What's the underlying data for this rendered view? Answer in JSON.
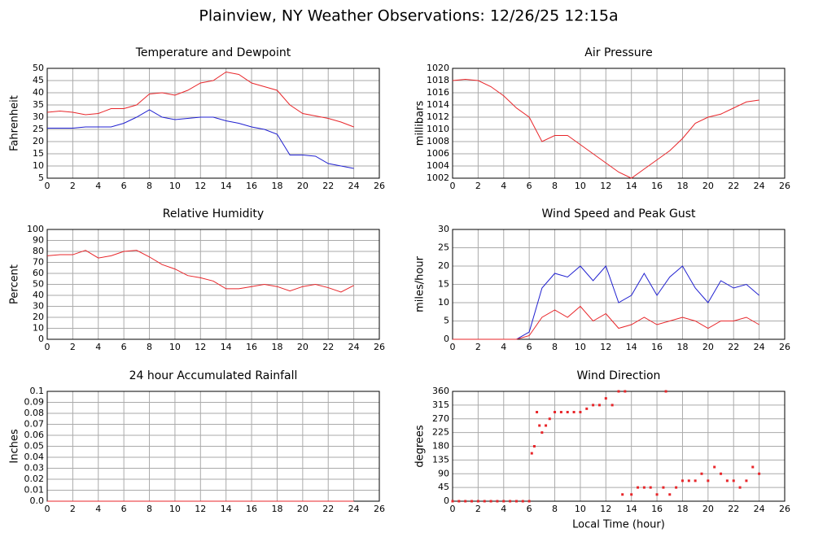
{
  "title": "Plainview, NY Weather Observations: 12/26/25 12:15a",
  "chart_data": [
    {
      "type": "line",
      "title": "Temperature and Dewpoint",
      "ylabel": "Fahrenheit",
      "grid": true,
      "xlim": [
        0,
        26
      ],
      "xticks": [
        0,
        2,
        4,
        6,
        8,
        10,
        12,
        14,
        16,
        18,
        20,
        22,
        24,
        26
      ],
      "ylim": [
        5,
        50
      ],
      "yticks": [
        5,
        10,
        15,
        20,
        25,
        30,
        35,
        40,
        45,
        50
      ],
      "x": [
        0,
        1,
        2,
        3,
        4,
        5,
        6,
        7,
        8,
        9,
        10,
        11,
        12,
        13,
        14,
        15,
        16,
        17,
        18,
        19,
        20,
        21,
        22,
        23,
        24
      ],
      "series": [
        {
          "color": "#e8262a",
          "values": [
            32,
            32.5,
            32,
            31,
            31.5,
            33.5,
            33.5,
            35,
            39.5,
            40,
            39,
            41,
            44,
            45,
            48.5,
            47.5,
            44,
            42.5,
            41,
            35,
            31.5,
            30.5,
            29.5,
            28,
            26
          ]
        },
        {
          "color": "#2020d0",
          "values": [
            25.5,
            25.5,
            25.5,
            26,
            26,
            26,
            27.5,
            30,
            33,
            30,
            29,
            29.5,
            30,
            30,
            28.5,
            27.5,
            26,
            25,
            23,
            14.5,
            14.5,
            14,
            11,
            10,
            9
          ]
        }
      ]
    },
    {
      "type": "line",
      "title": "Air Pressure",
      "ylabel": "millibars",
      "grid": true,
      "xlim": [
        0,
        26
      ],
      "xticks": [
        0,
        2,
        4,
        6,
        8,
        10,
        12,
        14,
        16,
        18,
        20,
        22,
        24,
        26
      ],
      "ylim": [
        1002,
        1020
      ],
      "yticks": [
        1002,
        1004,
        1006,
        1008,
        1010,
        1012,
        1014,
        1016,
        1018,
        1020
      ],
      "x": [
        0,
        1,
        2,
        3,
        4,
        5,
        6,
        7,
        8,
        9,
        10,
        11,
        12,
        13,
        14,
        15,
        16,
        17,
        18,
        19,
        20,
        21,
        22,
        23,
        24
      ],
      "series": [
        {
          "color": "#e8262a",
          "values": [
            1018,
            1018.2,
            1018,
            1017,
            1015.5,
            1013.5,
            1012,
            1008,
            1009,
            1009,
            1007.5,
            1006,
            1004.5,
            1003,
            1002,
            1003.5,
            1005,
            1006.5,
            1008.5,
            1011,
            1012,
            1012.5,
            1013.5,
            1014.5,
            1014.8
          ]
        }
      ]
    },
    {
      "type": "line",
      "title": "Relative Humidity",
      "ylabel": "Percent",
      "grid": true,
      "xlim": [
        0,
        26
      ],
      "xticks": [
        0,
        2,
        4,
        6,
        8,
        10,
        12,
        14,
        16,
        18,
        20,
        22,
        24,
        26
      ],
      "ylim": [
        0,
        100
      ],
      "yticks": [
        0,
        10,
        20,
        30,
        40,
        50,
        60,
        70,
        80,
        90,
        100
      ],
      "x": [
        0,
        1,
        2,
        3,
        4,
        5,
        6,
        7,
        8,
        9,
        10,
        11,
        12,
        13,
        14,
        15,
        16,
        17,
        18,
        19,
        20,
        21,
        22,
        23,
        24
      ],
      "series": [
        {
          "color": "#e8262a",
          "values": [
            76,
            77,
            77,
            81,
            74,
            76,
            80,
            81,
            75,
            68,
            64,
            58,
            56,
            53,
            46,
            46,
            48,
            50,
            48,
            44,
            48,
            50,
            47,
            43,
            49
          ]
        }
      ]
    },
    {
      "type": "line",
      "title": "Wind Speed and Peak Gust",
      "ylabel": "miles/hour",
      "grid": true,
      "xlim": [
        0,
        26
      ],
      "xticks": [
        0,
        2,
        4,
        6,
        8,
        10,
        12,
        14,
        16,
        18,
        20,
        22,
        24,
        26
      ],
      "ylim": [
        0,
        30
      ],
      "yticks": [
        0,
        5,
        10,
        15,
        20,
        25,
        30
      ],
      "x": [
        0,
        1,
        2,
        3,
        4,
        5,
        6,
        7,
        8,
        9,
        10,
        11,
        12,
        13,
        14,
        15,
        16,
        17,
        18,
        19,
        20,
        21,
        22,
        23,
        24
      ],
      "series": [
        {
          "color": "#2020d0",
          "values": [
            0,
            0,
            0,
            0,
            0,
            0,
            2,
            14,
            18,
            17,
            20,
            16,
            20,
            10,
            12,
            18,
            12,
            17,
            20,
            14,
            10,
            16,
            14,
            15,
            12
          ]
        },
        {
          "color": "#e8262a",
          "values": [
            0,
            0,
            0,
            0,
            0,
            0,
            1,
            6,
            8,
            6,
            9,
            5,
            7,
            3,
            4,
            6,
            4,
            5,
            6,
            5,
            3,
            5,
            5,
            6,
            4
          ]
        }
      ]
    },
    {
      "type": "line",
      "title": "24 hour Accumulated Rainfall",
      "ylabel": "Inches",
      "grid": true,
      "xlim": [
        0,
        26
      ],
      "xticks": [
        0,
        2,
        4,
        6,
        8,
        10,
        12,
        14,
        16,
        18,
        20,
        22,
        24,
        26
      ],
      "ylim": [
        0,
        0.1
      ],
      "yticks": [
        {
          "value": 0,
          "label": "0.0"
        },
        0.01,
        0.02,
        0.03,
        0.04,
        0.05,
        0.06,
        0.07,
        0.08,
        0.09,
        0.1
      ],
      "x": [
        0,
        24
      ],
      "series": [
        {
          "color": "#e8262a",
          "values": [
            0,
            0
          ]
        }
      ]
    },
    {
      "type": "scatter",
      "title": "Wind Direction",
      "ylabel": "degrees",
      "xlabel": "Local Time (hour)",
      "grid": true,
      "xlim": [
        0,
        26
      ],
      "xticks": [
        0,
        2,
        4,
        6,
        8,
        10,
        12,
        14,
        16,
        18,
        20,
        22,
        24,
        26
      ],
      "ylim": [
        0,
        360
      ],
      "yticks": [
        0,
        45,
        90,
        135,
        180,
        225,
        270,
        315,
        360
      ],
      "x": [
        0,
        0.5,
        1,
        1.5,
        2,
        2.5,
        3,
        3.5,
        4,
        4.5,
        5,
        5.5,
        6,
        6.2,
        6.4,
        6.6,
        6.8,
        7,
        7.3,
        7.6,
        8,
        8.5,
        9,
        9.5,
        10,
        10.5,
        11,
        11.5,
        12,
        12.5,
        13,
        13.5,
        13.3,
        14,
        14.5,
        15,
        15.5,
        16,
        16.5,
        16.7,
        17,
        17.5,
        18,
        18.5,
        19,
        19.5,
        20,
        20.5,
        21,
        21.5,
        22,
        22.5,
        23,
        23.5,
        24
      ],
      "series": [
        {
          "color": "#e8262a",
          "values": [
            0,
            0,
            0,
            0,
            0,
            0,
            0,
            0,
            0,
            0,
            0,
            0,
            0,
            157,
            180,
            292,
            248,
            225,
            248,
            270,
            292,
            292,
            292,
            292,
            292,
            303,
            315,
            315,
            337,
            315,
            360,
            360,
            22,
            22,
            45,
            45,
            45,
            22,
            45,
            360,
            22,
            45,
            67,
            67,
            67,
            90,
            67,
            112,
            90,
            67,
            67,
            45,
            67,
            112,
            90
          ]
        }
      ]
    }
  ]
}
